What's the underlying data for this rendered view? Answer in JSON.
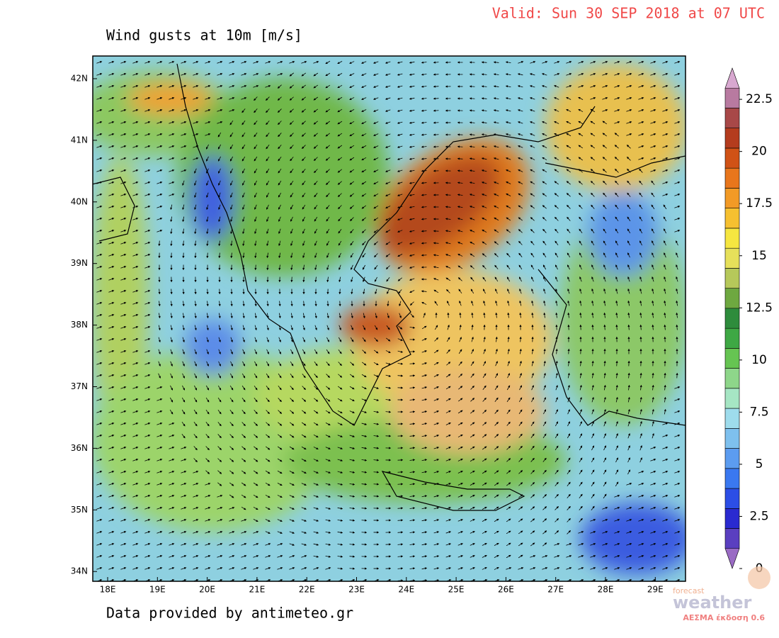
{
  "header": {
    "valid": "Valid: Sun 30 SEP 2018 at 07 UTC",
    "title": "Wind gusts at 10m [m/s]"
  },
  "axes": {
    "lat_labels": [
      "42N",
      "41N",
      "40N",
      "39N",
      "38N",
      "37N",
      "36N",
      "35N",
      "34N"
    ],
    "lon_labels": [
      "18E",
      "19E",
      "20E",
      "21E",
      "22E",
      "23E",
      "24E",
      "25E",
      "26E",
      "27E",
      "28E",
      "29E"
    ]
  },
  "colorbar": {
    "lim": [
      0,
      24
    ],
    "ticks": [
      0,
      2.5,
      5,
      7.5,
      10,
      12.5,
      15,
      17.5,
      20,
      22.5
    ],
    "colors": [
      "#9a6bc4",
      "#5a3fc0",
      "#2a2ad0",
      "#2c4ee6",
      "#3a78f0",
      "#5c9cf0",
      "#7ec0ee",
      "#9edcec",
      "#a6e6c4",
      "#8ed68a",
      "#66c452",
      "#3ea844",
      "#2e8c3c",
      "#6ea840",
      "#b6c85a",
      "#e6e05a",
      "#f6e640",
      "#f6c030",
      "#f29a26",
      "#e8761c",
      "#d05216",
      "#b43c1e",
      "#a84848",
      "#b87aa0",
      "#d8a8d0"
    ]
  },
  "footer": {
    "credit": "Data provided by antimeteo.gr"
  },
  "logo": {
    "small": "forecast",
    "big": "weather",
    "version": "ΑΕΣΜΑ έκδοση 0.6"
  }
}
